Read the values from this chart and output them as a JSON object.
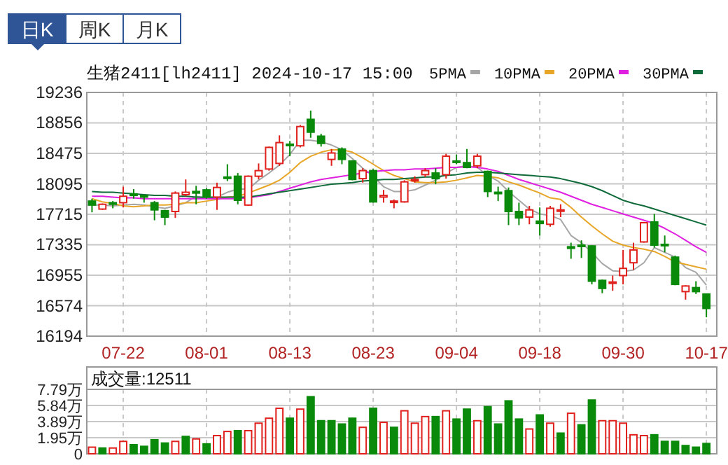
{
  "chart_data": [
    {
      "type": "candlestick",
      "title": "生猪2411[lh2411] 2024-10-17 15:00",
      "annotations": [
        "日K",
        "周K",
        "月K"
      ],
      "categories": [
        null,
        null,
        null,
        "07-22",
        null,
        null,
        null,
        null,
        null,
        null,
        null,
        "08-01",
        null,
        null,
        null,
        null,
        null,
        null,
        null,
        "08-13",
        null,
        null,
        null,
        null,
        null,
        null,
        null,
        "08-23",
        null,
        null,
        null,
        null,
        null,
        null,
        null,
        "09-04",
        null,
        null,
        null,
        null,
        null,
        null,
        null,
        "09-18",
        null,
        null,
        null,
        null,
        null,
        null,
        null,
        "09-30",
        null,
        null,
        null,
        null,
        null,
        null,
        null,
        "10-17"
      ],
      "ohlc": [
        [
          17880,
          17910,
          17740,
          17830
        ],
        [
          17780,
          17850,
          17770,
          17840
        ],
        [
          17860,
          17880,
          17790,
          17840
        ],
        [
          17860,
          18060,
          17800,
          17940
        ],
        [
          17970,
          18030,
          17910,
          17950
        ],
        [
          17950,
          17960,
          17860,
          17930
        ],
        [
          17860,
          17880,
          17640,
          17770
        ],
        [
          17760,
          17770,
          17580,
          17680
        ],
        [
          17750,
          18000,
          17670,
          17980
        ],
        [
          17960,
          18150,
          17940,
          17990
        ],
        [
          18000,
          18070,
          17840,
          17980
        ],
        [
          18020,
          18040,
          17910,
          17930
        ],
        [
          17930,
          18110,
          17770,
          18050
        ],
        [
          18180,
          18340,
          18130,
          18170
        ],
        [
          18190,
          18230,
          17840,
          17890
        ],
        [
          17830,
          18200,
          17820,
          18190
        ],
        [
          18190,
          18350,
          18150,
          18260
        ],
        [
          18280,
          18560,
          18260,
          18550
        ],
        [
          18350,
          18700,
          18320,
          18610
        ],
        [
          18590,
          18630,
          18440,
          18580
        ],
        [
          18570,
          18830,
          18550,
          18810
        ],
        [
          18900,
          19010,
          18670,
          18740
        ],
        [
          18690,
          18720,
          18560,
          18600
        ],
        [
          18400,
          18530,
          18320,
          18480
        ],
        [
          18530,
          18550,
          18340,
          18400
        ],
        [
          18380,
          18390,
          18140,
          18150
        ],
        [
          18160,
          18290,
          18110,
          18260
        ],
        [
          18260,
          18280,
          17860,
          17870
        ],
        [
          17930,
          18020,
          17860,
          17950
        ],
        [
          17870,
          17900,
          17790,
          17880
        ],
        [
          17870,
          18140,
          17860,
          18120
        ],
        [
          18140,
          18190,
          18110,
          18150
        ],
        [
          18210,
          18290,
          18180,
          18260
        ],
        [
          18230,
          18290,
          18090,
          18160
        ],
        [
          18210,
          18470,
          18160,
          18440
        ],
        [
          18380,
          18460,
          18340,
          18370
        ],
        [
          18360,
          18530,
          18290,
          18300
        ],
        [
          18320,
          18470,
          18290,
          18440
        ],
        [
          18250,
          18260,
          17930,
          18000
        ],
        [
          17990,
          18060,
          17880,
          17980
        ],
        [
          18010,
          18050,
          17580,
          17750
        ],
        [
          17750,
          17860,
          17580,
          17670
        ],
        [
          17680,
          17820,
          17590,
          17770
        ],
        [
          17630,
          17800,
          17450,
          17600
        ],
        [
          17590,
          17820,
          17560,
          17790
        ],
        [
          17760,
          17840,
          17680,
          17770
        ],
        [
          17310,
          17360,
          17160,
          17290
        ],
        [
          17330,
          17390,
          17170,
          17320
        ],
        [
          17320,
          17330,
          16840,
          16880
        ],
        [
          16890,
          16900,
          16730,
          16790
        ],
        [
          16860,
          16950,
          16760,
          16870
        ],
        [
          16950,
          17270,
          16840,
          17040
        ],
        [
          17110,
          17360,
          17020,
          17270
        ],
        [
          17370,
          17620,
          17360,
          17610
        ],
        [
          17620,
          17720,
          17300,
          17330
        ],
        [
          17340,
          17450,
          17240,
          17330
        ],
        [
          17180,
          17200,
          16830,
          16840
        ],
        [
          16750,
          16830,
          16650,
          16820
        ],
        [
          16800,
          16880,
          16720,
          16750
        ],
        [
          16720,
          16720,
          16430,
          16540
        ]
      ],
      "series": [
        {
          "name": "5PMA",
          "type": "line",
          "color": "#a6a6a6",
          "values": [
            17830,
            17830,
            17820,
            17830,
            17840,
            17830,
            17810,
            17790,
            17820,
            17860,
            17940,
            17910,
            17930,
            17990,
            18030,
            18030,
            18140,
            18230,
            18330,
            18460,
            18640,
            18640,
            18620,
            18580,
            18520,
            18410,
            18290,
            18190,
            18060,
            18000,
            18000,
            18020,
            18080,
            18140,
            18230,
            18300,
            18320,
            18300,
            18200,
            18130,
            18000,
            17890,
            17780,
            17720,
            17700,
            17650,
            17450,
            17360,
            17240,
            17100,
            17010,
            17000,
            17020,
            17110,
            17300,
            17240,
            17180,
            17050,
            16990,
            16830
          ]
        },
        {
          "name": "10PMA",
          "type": "line",
          "color": "#e8a628",
          "values": [
            17910,
            17870,
            17850,
            17820,
            17810,
            17820,
            17830,
            17830,
            17840,
            17860,
            17860,
            17880,
            17900,
            17930,
            17940,
            17980,
            18030,
            18080,
            18140,
            18240,
            18360,
            18440,
            18490,
            18520,
            18520,
            18490,
            18420,
            18340,
            18260,
            18200,
            18160,
            18120,
            18110,
            18110,
            18120,
            18140,
            18170,
            18200,
            18190,
            18170,
            18120,
            18080,
            18030,
            17980,
            17920,
            17900,
            17800,
            17680,
            17570,
            17470,
            17380,
            17330,
            17300,
            17280,
            17250,
            17190,
            17120,
            17090,
            17060,
            17030
          ]
        },
        {
          "name": "20PMA",
          "type": "line",
          "color": "#e020e0",
          "values": [
            17940,
            17940,
            17930,
            17920,
            17920,
            17910,
            17910,
            17910,
            17910,
            17910,
            17910,
            17910,
            17910,
            17910,
            17910,
            17920,
            17940,
            17960,
            18000,
            18040,
            18080,
            18120,
            18150,
            18170,
            18190,
            18210,
            18230,
            18250,
            18260,
            18270,
            18270,
            18280,
            18280,
            18290,
            18300,
            18300,
            18310,
            18300,
            18280,
            18250,
            18200,
            18150,
            18110,
            18070,
            18030,
            17990,
            17940,
            17890,
            17840,
            17800,
            17760,
            17720,
            17680,
            17640,
            17600,
            17540,
            17470,
            17390,
            17310,
            17240
          ]
        },
        {
          "name": "30PMA",
          "type": "line",
          "color": "#0f6b3a",
          "values": [
            18000,
            17990,
            17990,
            17980,
            17970,
            17960,
            17950,
            17950,
            17940,
            17940,
            17930,
            17930,
            17930,
            17930,
            17930,
            17930,
            17950,
            17970,
            17990,
            18010,
            18030,
            18050,
            18070,
            18090,
            18100,
            18110,
            18130,
            18140,
            18150,
            18150,
            18160,
            18170,
            18180,
            18180,
            18200,
            18210,
            18230,
            18240,
            18240,
            18230,
            18220,
            18210,
            18200,
            18190,
            18180,
            18160,
            18130,
            18100,
            18060,
            18010,
            17950,
            17890,
            17850,
            17820,
            17780,
            17740,
            17700,
            17660,
            17620,
            17580
          ]
        }
      ],
      "ylim": [
        16194,
        19236
      ],
      "yticks": [
        16194,
        16574,
        16955,
        17335,
        17715,
        18095,
        18475,
        18856,
        19236
      ],
      "grid": true,
      "legend": "top right"
    },
    {
      "type": "bar",
      "title": "成交量:12511",
      "tick_labels": "y",
      "grid": true,
      "categories": [
        null,
        null,
        null,
        null,
        null,
        null,
        null,
        null,
        null,
        null,
        null,
        null,
        null,
        null,
        null,
        null,
        null,
        null,
        null,
        null,
        null,
        null,
        null,
        null,
        null,
        null,
        null,
        null,
        null,
        null,
        null,
        null,
        null,
        null,
        null,
        null,
        null,
        null,
        null,
        null,
        null,
        null,
        null,
        null,
        null,
        null,
        null,
        null,
        null,
        null,
        null,
        null,
        null,
        null,
        null,
        null,
        null,
        null,
        null,
        null
      ],
      "values": [
        0.8,
        0.7,
        0.7,
        1.5,
        1.1,
        0.9,
        1.7,
        1.3,
        1.5,
        2.1,
        1.8,
        1.2,
        2.2,
        2.7,
        2.8,
        2.8,
        3.7,
        4.3,
        5.5,
        4.3,
        5.4,
        6.9,
        4.0,
        4.0,
        3.6,
        4.3,
        3.2,
        5.5,
        3.8,
        3.2,
        5.2,
        3.7,
        4.5,
        4.5,
        5.2,
        4.2,
        5.4,
        4.0,
        5.7,
        3.6,
        6.4,
        4.2,
        3.0,
        4.7,
        3.7,
        2.5,
        4.9,
        3.5,
        6.5,
        4.0,
        4.0,
        3.7,
        2.3,
        2.2,
        2.3,
        1.5,
        1.5,
        1.0,
        0.8,
        1.25
      ],
      "colors": [
        "#e0201c",
        "#0a8a0a",
        "#e0201c",
        "#e0201c",
        "#0a8a0a",
        "#0a8a0a",
        "#0a8a0a",
        "#0a8a0a",
        "#e0201c",
        "#0a8a0a",
        "#e0201c",
        "#0a8a0a",
        "#e0201c",
        "#e0201c",
        "#0a8a0a",
        "#e0201c",
        "#e0201c",
        "#e0201c",
        "#e0201c",
        "#0a8a0a",
        "#e0201c",
        "#0a8a0a",
        "#0a8a0a",
        "#0a8a0a",
        "#0a8a0a",
        "#0a8a0a",
        "#e0201c",
        "#0a8a0a",
        "#e0201c",
        "#0a8a0a",
        "#e0201c",
        "#e0201c",
        "#e0201c",
        "#0a8a0a",
        "#e0201c",
        "#0a8a0a",
        "#0a8a0a",
        "#e0201c",
        "#0a8a0a",
        "#0a8a0a",
        "#0a8a0a",
        "#0a8a0a",
        "#e0201c",
        "#0a8a0a",
        "#e0201c",
        "#0a8a0a",
        "#e0201c",
        "#0a8a0a",
        "#0a8a0a",
        "#e0201c",
        "#e0201c",
        "#e0201c",
        "#e0201c",
        "#e0201c",
        "#0a8a0a",
        "#0a8a0a",
        "#0a8a0a",
        "#0a8a0a",
        "#0a8a0a",
        "#0a8a0a"
      ],
      "ylim": [
        0,
        7.79
      ],
      "yticks": [
        0,
        {
          "value": 1.95,
          "label": "1.95万"
        },
        {
          "value": 3.89,
          "label": "3.89万"
        },
        {
          "value": 5.84,
          "label": "5.84万"
        },
        {
          "value": 7.79,
          "label": "7.79万"
        }
      ]
    }
  ]
}
